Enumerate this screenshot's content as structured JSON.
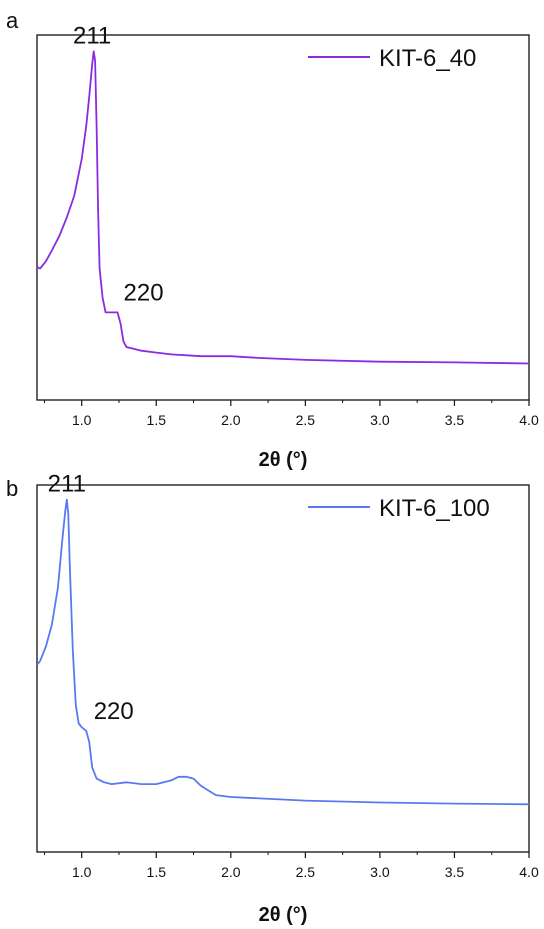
{
  "colors": {
    "panel_a_line": "#8a2be2",
    "panel_b_line": "#5a78f0",
    "axes": "#111111"
  },
  "chart_data": [
    {
      "type": "line",
      "panel_label": "a",
      "xlabel": "2θ (°)",
      "ylabel": "",
      "xlim": [
        0.7,
        4.0
      ],
      "ylim": [
        0,
        1
      ],
      "y_ticks_shown": false,
      "x_ticks": [
        "1.0",
        "1.5",
        "2.0",
        "2.5",
        "3.0",
        "3.5",
        "4.0"
      ],
      "legend": {
        "position": "top-right"
      },
      "series": [
        {
          "name": "KIT-6_40",
          "color": "#8a2be2",
          "x": [
            0.7,
            0.72,
            0.76,
            0.8,
            0.85,
            0.9,
            0.95,
            1.0,
            1.03,
            1.05,
            1.07,
            1.08,
            1.09,
            1.1,
            1.11,
            1.12,
            1.14,
            1.16,
            1.18,
            1.21,
            1.23,
            1.24,
            1.26,
            1.28,
            1.3,
            1.35,
            1.4,
            1.5,
            1.6,
            1.8,
            2.0,
            2.2,
            2.5,
            3.0,
            3.5,
            4.0
          ],
          "y": [
            0.365,
            0.36,
            0.38,
            0.41,
            0.45,
            0.5,
            0.56,
            0.66,
            0.75,
            0.83,
            0.92,
            0.955,
            0.93,
            0.75,
            0.52,
            0.36,
            0.28,
            0.24,
            0.24,
            0.24,
            0.24,
            0.24,
            0.21,
            0.16,
            0.145,
            0.14,
            0.135,
            0.13,
            0.125,
            0.12,
            0.12,
            0.115,
            0.11,
            0.105,
            0.103,
            0.1
          ]
        }
      ],
      "annotations": [
        {
          "text": "211",
          "x": 1.07,
          "y": 0.955
        },
        {
          "text": "220",
          "x": 1.24,
          "y": 0.24
        }
      ]
    },
    {
      "type": "line",
      "panel_label": "b",
      "xlabel": "2θ (°)",
      "ylabel": "",
      "xlim": [
        0.7,
        4.0
      ],
      "ylim": [
        0,
        1
      ],
      "y_ticks_shown": false,
      "x_ticks": [
        "1.0",
        "1.5",
        "2.0",
        "2.5",
        "3.0",
        "3.5",
        "4.0"
      ],
      "legend": {
        "position": "top-right"
      },
      "series": [
        {
          "name": "KIT-6_100",
          "color": "#5a78f0",
          "x": [
            0.7,
            0.72,
            0.76,
            0.8,
            0.84,
            0.87,
            0.89,
            0.9,
            0.91,
            0.92,
            0.94,
            0.96,
            0.98,
            1.0,
            1.03,
            1.05,
            1.07,
            1.1,
            1.15,
            1.2,
            1.3,
            1.4,
            1.5,
            1.6,
            1.65,
            1.7,
            1.75,
            1.8,
            1.9,
            2.0,
            2.5,
            3.0,
            3.5,
            4.0
          ],
          "y": [
            0.51,
            0.52,
            0.56,
            0.62,
            0.72,
            0.85,
            0.93,
            0.96,
            0.92,
            0.78,
            0.55,
            0.4,
            0.35,
            0.34,
            0.33,
            0.3,
            0.23,
            0.2,
            0.19,
            0.185,
            0.19,
            0.185,
            0.185,
            0.195,
            0.205,
            0.205,
            0.2,
            0.18,
            0.155,
            0.15,
            0.14,
            0.135,
            0.132,
            0.13
          ]
        }
      ],
      "annotations": [
        {
          "text": "211",
          "x": 0.9,
          "y": 0.96
        },
        {
          "text": "220",
          "x": 1.04,
          "y": 0.33
        }
      ]
    }
  ]
}
